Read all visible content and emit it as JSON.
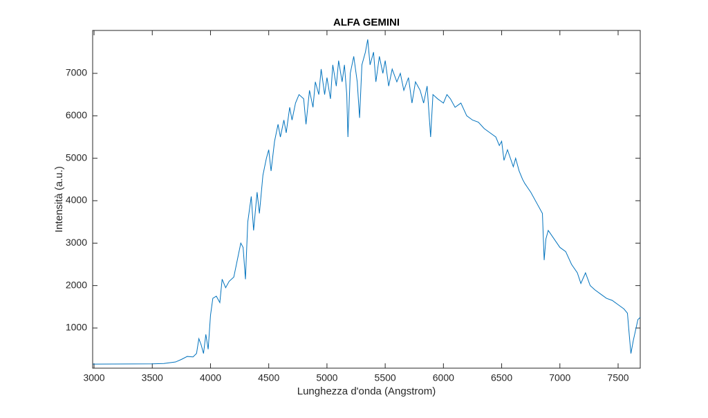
{
  "chart_data": {
    "type": "line",
    "title": "ALFA GEMINI",
    "x_label": "Lunghezza d'onda (Angstrom)",
    "y_label": "Intensità (a.u.)",
    "x": [
      2990,
      3000,
      3500,
      3600,
      3700,
      3750,
      3800,
      3850,
      3880,
      3900,
      3920,
      3940,
      3960,
      3980,
      4000,
      4020,
      4050,
      4080,
      4100,
      4130,
      4160,
      4200,
      4230,
      4260,
      4280,
      4300,
      4320,
      4350,
      4370,
      4400,
      4420,
      4450,
      4480,
      4500,
      4520,
      4550,
      4580,
      4600,
      4630,
      4650,
      4680,
      4700,
      4730,
      4760,
      4800,
      4820,
      4850,
      4880,
      4900,
      4930,
      4950,
      4980,
      5000,
      5030,
      5050,
      5080,
      5100,
      5130,
      5150,
      5170,
      5180,
      5200,
      5230,
      5260,
      5280,
      5300,
      5330,
      5350,
      5370,
      5400,
      5420,
      5450,
      5480,
      5500,
      5530,
      5560,
      5600,
      5630,
      5660,
      5700,
      5730,
      5760,
      5800,
      5830,
      5860,
      5890,
      5910,
      5950,
      6000,
      6030,
      6060,
      6100,
      6150,
      6200,
      6250,
      6300,
      6350,
      6400,
      6450,
      6480,
      6500,
      6520,
      6550,
      6600,
      6620,
      6650,
      6680,
      6700,
      6750,
      6800,
      6850,
      6865,
      6880,
      6900,
      6950,
      7000,
      7050,
      7100,
      7150,
      7180,
      7220,
      7260,
      7300,
      7350,
      7400,
      7450,
      7500,
      7550,
      7580,
      7600,
      7610,
      7630,
      7650,
      7670,
      7690
    ],
    "series": [
      {
        "name": "Alfa Gemini",
        "color": "#0072bd",
        "values": [
          150,
          150,
          155,
          165,
          200,
          260,
          330,
          320,
          400,
          750,
          600,
          400,
          850,
          500,
          1300,
          1700,
          1750,
          1600,
          2150,
          1950,
          2100,
          2200,
          2600,
          3000,
          2900,
          2150,
          3500,
          4100,
          3300,
          4200,
          3700,
          4600,
          5000,
          5200,
          4700,
          5400,
          5800,
          5500,
          5900,
          5600,
          6200,
          5900,
          6300,
          6500,
          6400,
          5800,
          6600,
          6200,
          6800,
          6500,
          7100,
          6500,
          6900,
          6400,
          7200,
          6700,
          7300,
          6800,
          7200,
          6500,
          5500,
          7000,
          7400,
          6800,
          5950,
          7200,
          7500,
          7800,
          7200,
          7500,
          6800,
          7400,
          7000,
          7300,
          6700,
          7100,
          6800,
          7000,
          6600,
          6900,
          6300,
          6800,
          6600,
          6300,
          6700,
          5500,
          6500,
          6400,
          6300,
          6500,
          6400,
          6200,
          6300,
          6000,
          5900,
          5850,
          5700,
          5600,
          5500,
          5300,
          5400,
          4950,
          5200,
          4800,
          5000,
          4700,
          4500,
          4400,
          4200,
          3950,
          3700,
          2600,
          3100,
          3300,
          3100,
          2900,
          2800,
          2500,
          2300,
          2050,
          2300,
          2000,
          1900,
          1800,
          1700,
          1650,
          1550,
          1450,
          1350,
          700,
          400,
          700,
          950,
          1200,
          1250
        ]
      }
    ],
    "xlim": [
      2988,
      7690
    ],
    "ylim": [
      54,
      8011
    ],
    "xticks": [
      3000,
      3500,
      4000,
      4500,
      5000,
      5500,
      6000,
      6500,
      7000,
      7500
    ],
    "yticks": [
      1000,
      2000,
      3000,
      4000,
      5000,
      6000,
      7000
    ],
    "grid": false
  }
}
